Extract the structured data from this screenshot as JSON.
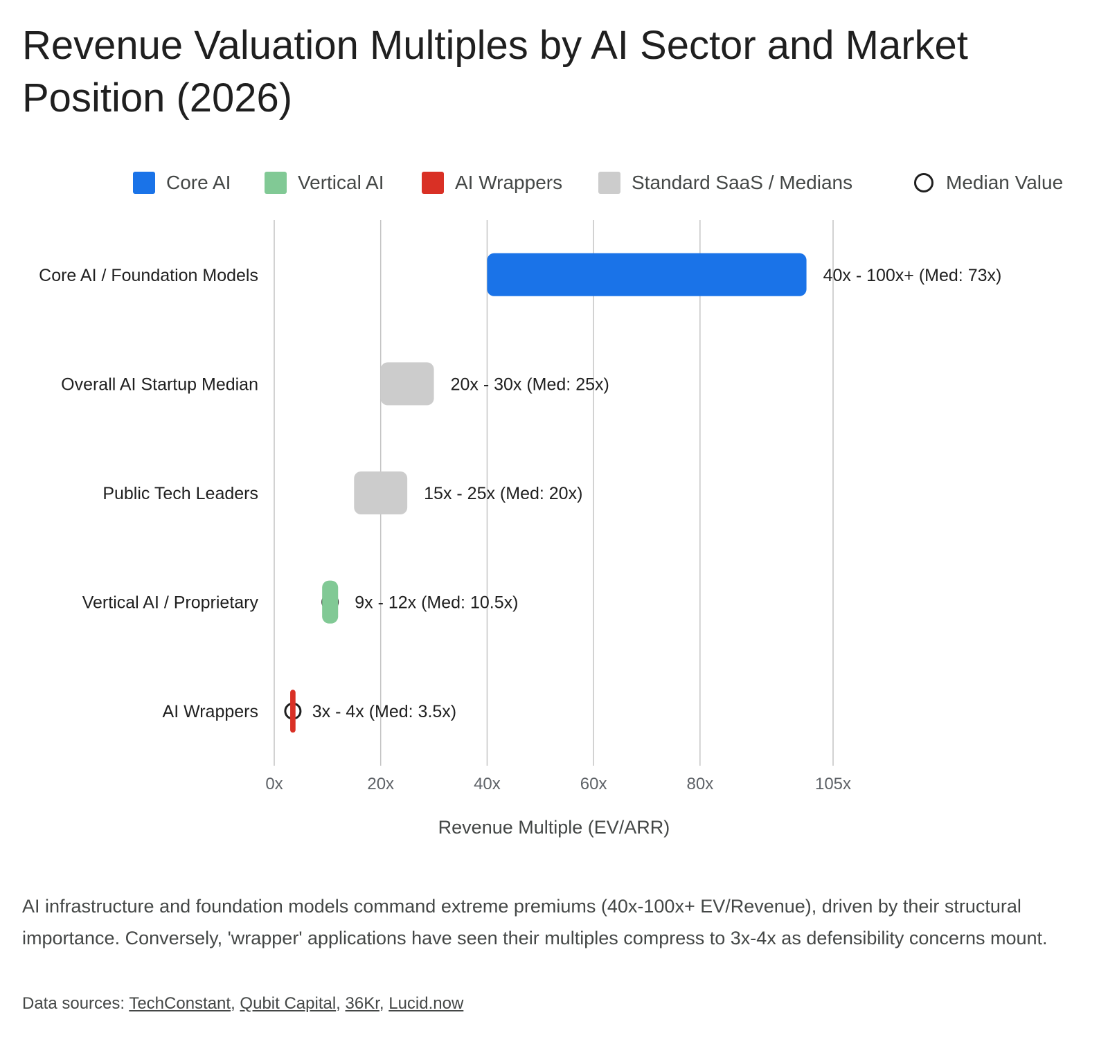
{
  "title": "Revenue Valuation Multiples by AI Sector and Market Position (2026)",
  "colors": {
    "core_ai": "#1a73e8",
    "vertical_ai": "#81c995",
    "ai_wrappers": "#d93025",
    "standard_saas": "#cccccc",
    "median_marker": "#1f1f1f",
    "grid": "#c4c4c4"
  },
  "legend": [
    {
      "label": "Core AI",
      "color": "#1a73e8",
      "shape": "square"
    },
    {
      "label": "Vertical AI",
      "color": "#81c995",
      "shape": "square"
    },
    {
      "label": "AI Wrappers",
      "color": "#d93025",
      "shape": "square"
    },
    {
      "label": "Standard SaaS / Medians",
      "color": "#cccccc",
      "shape": "square"
    },
    {
      "label": "Median Value",
      "color": "#1f1f1f",
      "shape": "ring"
    }
  ],
  "chart_data": {
    "type": "bar",
    "orientation": "horizontal-range",
    "title": "Revenue Valuation Multiples by AI Sector and Market Position (2026)",
    "xlabel": "Revenue Multiple (EV/ARR)",
    "ylabel": "",
    "xlim": [
      0,
      105
    ],
    "x_ticks": [
      {
        "value": 0,
        "label": "0x"
      },
      {
        "value": 20,
        "label": "20x"
      },
      {
        "value": 40,
        "label": "40x"
      },
      {
        "value": 60,
        "label": "60x"
      },
      {
        "value": 80,
        "label": "80x"
      },
      {
        "value": 105,
        "label": "105x"
      }
    ],
    "grid": true,
    "legend_position": "top",
    "categories": [
      "Core AI / Foundation Models",
      "Overall AI Startup Median",
      "Public Tech Leaders",
      "Vertical AI / Proprietary",
      "AI Wrappers"
    ],
    "series": [
      {
        "category": "Core AI / Foundation Models",
        "low": 40,
        "high": 100,
        "median": 73,
        "color": "#1a73e8",
        "label": "40x - 100x+ (Med: 73x)"
      },
      {
        "category": "Overall AI Startup Median",
        "low": 20,
        "high": 30,
        "median": 25,
        "color": "#cccccc",
        "label": "20x - 30x (Med: 25x)"
      },
      {
        "category": "Public Tech Leaders",
        "low": 15,
        "high": 25,
        "median": 20,
        "color": "#cccccc",
        "label": "15x - 25x (Med: 20x)"
      },
      {
        "category": "Vertical AI / Proprietary",
        "low": 9,
        "high": 12,
        "median": 10.5,
        "color": "#81c995",
        "label": "9x - 12x (Med: 10.5x)"
      },
      {
        "category": "AI Wrappers",
        "low": 3,
        "high": 4,
        "median": 3.5,
        "color": "#d93025",
        "label": "3x - 4x (Med: 3.5x)"
      }
    ]
  },
  "note": "AI infrastructure and foundation models command extreme premiums (40x-100x+ EV/Revenue), driven by their structural importance. Conversely, 'wrapper' applications have seen their multiples compress to 3x-4x as defensibility concerns mount.",
  "sources": {
    "prefix": "Data sources: ",
    "links": [
      "TechConstant",
      "Qubit Capital",
      "36Kr",
      "Lucid.now"
    ]
  }
}
